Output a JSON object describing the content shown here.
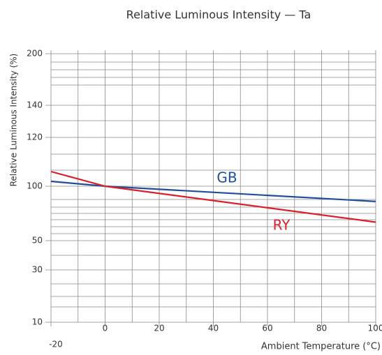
{
  "chart_data": {
    "type": "line",
    "title": "Relative Luminous Intensity — Ta",
    "x_label": "Ambient Temperature (°C)",
    "y_label": "Relative Luminous Intensity (%)",
    "xlim": [
      -20,
      100
    ],
    "xticks": [
      -20,
      0,
      20,
      40,
      60,
      80,
      100
    ],
    "ylim": [
      10,
      200
    ],
    "yticks": [
      10,
      30,
      50,
      100,
      120,
      140,
      200
    ],
    "grid": true,
    "series": [
      {
        "name": "GB",
        "color": "#1f4f9a",
        "x": [
          -20,
          0,
          100
        ],
        "values": [
          102,
          100,
          86
        ]
      },
      {
        "name": "RY",
        "color": "#d9202a",
        "x": [
          -20,
          0,
          100
        ],
        "values": [
          106,
          100,
          67
        ]
      }
    ]
  }
}
